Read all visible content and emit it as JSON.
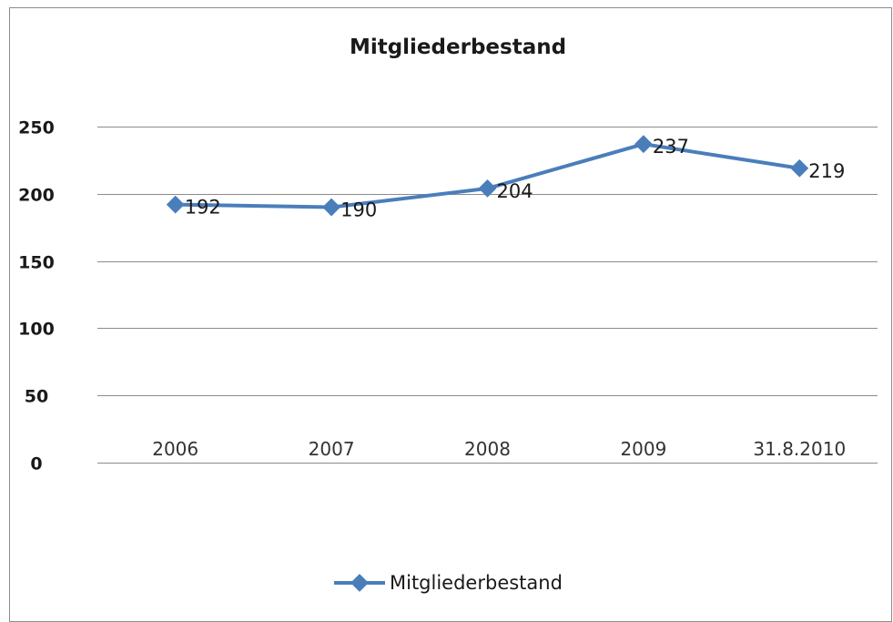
{
  "chart_data": {
    "type": "line",
    "title": "Mitgliederbestand",
    "categories": [
      "2006",
      "2007",
      "2008",
      "2009",
      "31.8.2010"
    ],
    "series": [
      {
        "name": "Mitgliederbestand",
        "values": [
          192,
          190,
          204,
          237,
          219
        ],
        "labels": [
          "192",
          "190",
          "204",
          "237",
          "219"
        ],
        "color": "#4a7ebb"
      }
    ],
    "ylim": [
      0,
      250
    ],
    "yticks": [
      "0",
      "50",
      "100",
      "150",
      "200",
      "250"
    ],
    "grid": true,
    "legend": "bottom"
  }
}
